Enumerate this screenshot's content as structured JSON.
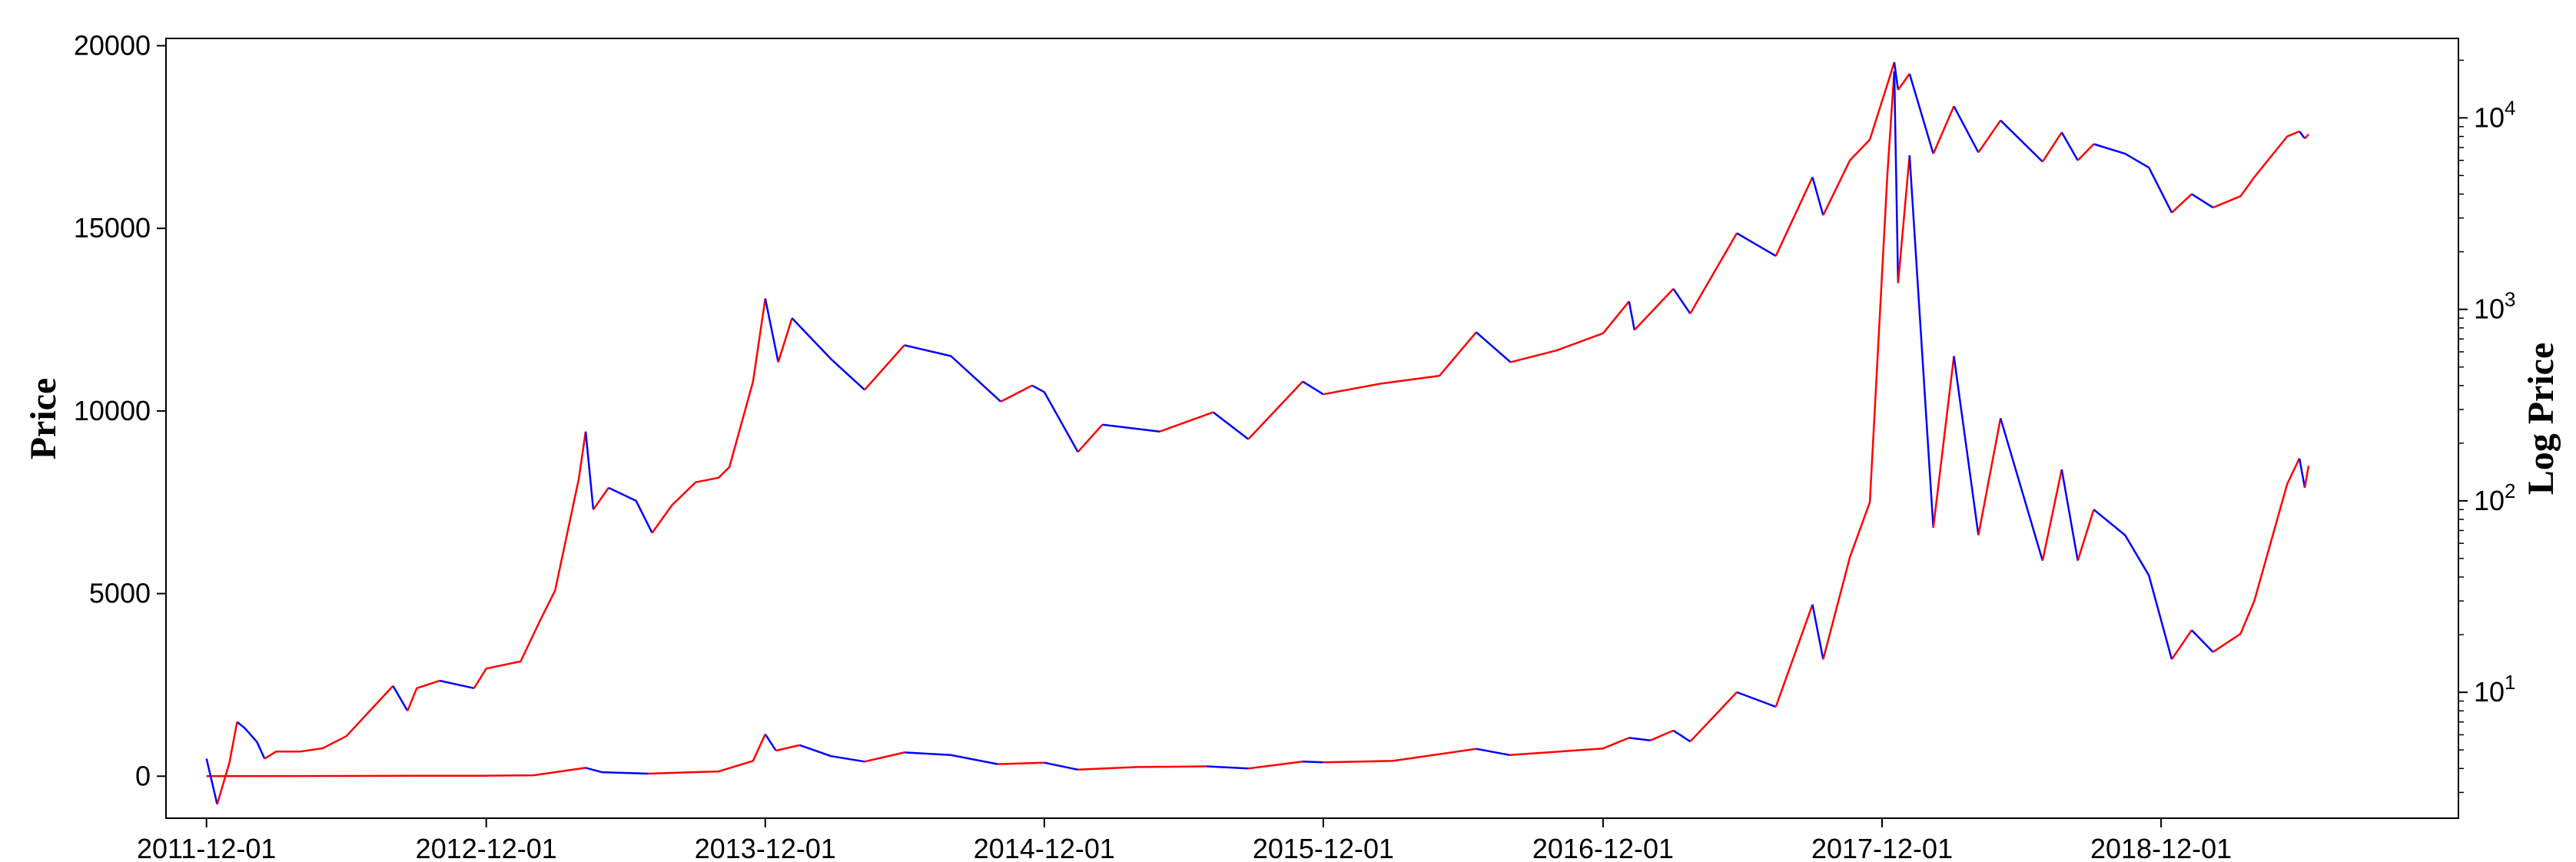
{
  "chart_data": {
    "type": "line",
    "title": "",
    "xlabel": "",
    "ylabel": "Price",
    "y2label": "Log Price",
    "x_ticks": [
      "2011-12-01",
      "2012-12-01",
      "2013-12-01",
      "2014-12-01",
      "2015-12-01",
      "2016-12-01",
      "2017-12-01",
      "2018-12-01"
    ],
    "xlim": [
      "2011-10-09",
      "2019-12-25"
    ],
    "ylim": [
      -1150,
      20200
    ],
    "y_ticks": [
      0,
      5000,
      10000,
      15000,
      20000
    ],
    "y2_scale": "log",
    "y2lim": [
      2.2,
      26000
    ],
    "y2_ticks": [
      {
        "value": 10,
        "base": "10",
        "exp": "1"
      },
      {
        "value": 100,
        "base": "10",
        "exp": "2"
      },
      {
        "value": 1000,
        "base": "10",
        "exp": "3"
      },
      {
        "value": 10000,
        "base": "10",
        "exp": "4"
      }
    ],
    "colors": {
      "rising": "#ff0000",
      "falling": "#0000ff"
    },
    "grid": false,
    "series": [
      {
        "axis": "left",
        "points": [
          [
            "2011-12-01",
            3
          ],
          [
            "2012-03-01",
            5
          ],
          [
            "2012-06-01",
            6
          ],
          [
            "2012-09-01",
            11
          ],
          [
            "2012-12-01",
            13
          ],
          [
            "2013-02-01",
            25
          ],
          [
            "2013-04-10",
            230
          ],
          [
            "2013-05-01",
            110
          ],
          [
            "2013-07-01",
            70
          ],
          [
            "2013-10-01",
            130
          ],
          [
            "2013-11-15",
            420
          ],
          [
            "2013-12-01",
            1150
          ],
          [
            "2013-12-15",
            700
          ],
          [
            "2014-01-15",
            850
          ],
          [
            "2014-02-25",
            550
          ],
          [
            "2014-04-10",
            400
          ],
          [
            "2014-06-01",
            650
          ],
          [
            "2014-08-01",
            580
          ],
          [
            "2014-10-01",
            330
          ],
          [
            "2014-12-01",
            370
          ],
          [
            "2015-01-14",
            180
          ],
          [
            "2015-04-01",
            250
          ],
          [
            "2015-07-01",
            270
          ],
          [
            "2015-08-25",
            210
          ],
          [
            "2015-11-04",
            400
          ],
          [
            "2015-12-01",
            380
          ],
          [
            "2016-03-01",
            420
          ],
          [
            "2016-06-18",
            750
          ],
          [
            "2016-08-01",
            580
          ],
          [
            "2016-12-01",
            760
          ],
          [
            "2017-01-04",
            1050
          ],
          [
            "2017-02-01",
            980
          ],
          [
            "2017-03-03",
            1250
          ],
          [
            "2017-03-25",
            950
          ],
          [
            "2017-05-25",
            2300
          ],
          [
            "2017-07-15",
            1900
          ],
          [
            "2017-09-01",
            4700
          ],
          [
            "2017-09-15",
            3200
          ],
          [
            "2017-10-20",
            6000
          ],
          [
            "2017-11-15",
            7500
          ],
          [
            "2017-12-08",
            16500
          ],
          [
            "2017-12-17",
            19300
          ],
          [
            "2017-12-22",
            13500
          ],
          [
            "2018-01-06",
            17000
          ],
          [
            "2018-02-06",
            6800
          ],
          [
            "2018-03-05",
            11500
          ],
          [
            "2018-04-06",
            6600
          ],
          [
            "2018-05-05",
            9800
          ],
          [
            "2018-06-29",
            5900
          ],
          [
            "2018-07-24",
            8400
          ],
          [
            "2018-08-14",
            5900
          ],
          [
            "2018-09-04",
            7300
          ],
          [
            "2018-10-15",
            6600
          ],
          [
            "2018-11-15",
            5500
          ],
          [
            "2018-12-15",
            3200
          ],
          [
            "2019-01-10",
            4000
          ],
          [
            "2019-02-07",
            3400
          ],
          [
            "2019-03-15",
            3900
          ],
          [
            "2019-04-02",
            4800
          ],
          [
            "2019-05-15",
            8000
          ],
          [
            "2019-05-31",
            8700
          ],
          [
            "2019-06-07",
            7900
          ],
          [
            "2019-06-12",
            8500
          ]
        ]
      },
      {
        "axis": "right",
        "points": [
          [
            "2011-12-01",
            4.5
          ],
          [
            "2011-12-15",
            2.6
          ],
          [
            "2011-12-31",
            4.3
          ],
          [
            "2012-01-10",
            7.0
          ],
          [
            "2012-01-20",
            6.5
          ],
          [
            "2012-02-05",
            5.5
          ],
          [
            "2012-02-15",
            4.5
          ],
          [
            "2012-03-01",
            4.9
          ],
          [
            "2012-04-01",
            4.9
          ],
          [
            "2012-05-01",
            5.1
          ],
          [
            "2012-06-01",
            5.9
          ],
          [
            "2012-08-01",
            10.8
          ],
          [
            "2012-08-20",
            8.0
          ],
          [
            "2012-09-01",
            10.5
          ],
          [
            "2012-10-01",
            11.5
          ],
          [
            "2012-11-15",
            10.5
          ],
          [
            "2012-12-01",
            13.3
          ],
          [
            "2013-01-15",
            14.5
          ],
          [
            "2013-02-10",
            24
          ],
          [
            "2013-03-01",
            34
          ],
          [
            "2013-04-01",
            130
          ],
          [
            "2013-04-10",
            230
          ],
          [
            "2013-04-20",
            90
          ],
          [
            "2013-05-10",
            117
          ],
          [
            "2013-06-15",
            100
          ],
          [
            "2013-07-06",
            68
          ],
          [
            "2013-08-01",
            95
          ],
          [
            "2013-09-01",
            125
          ],
          [
            "2013-10-01",
            132
          ],
          [
            "2013-10-15",
            150
          ],
          [
            "2013-11-15",
            420
          ],
          [
            "2013-12-01",
            1140
          ],
          [
            "2013-12-18",
            530
          ],
          [
            "2014-01-05",
            900
          ],
          [
            "2014-02-25",
            550
          ],
          [
            "2014-04-10",
            380
          ],
          [
            "2014-06-01",
            650
          ],
          [
            "2014-08-01",
            570
          ],
          [
            "2014-10-05",
            330
          ],
          [
            "2014-11-15",
            400
          ],
          [
            "2014-12-01",
            370
          ],
          [
            "2015-01-14",
            180
          ],
          [
            "2015-02-15",
            250
          ],
          [
            "2015-05-01",
            230
          ],
          [
            "2015-07-10",
            290
          ],
          [
            "2015-08-25",
            210
          ],
          [
            "2015-11-04",
            420
          ],
          [
            "2015-12-01",
            360
          ],
          [
            "2016-02-15",
            410
          ],
          [
            "2016-05-01",
            450
          ],
          [
            "2016-06-18",
            760
          ],
          [
            "2016-08-02",
            530
          ],
          [
            "2016-10-01",
            610
          ],
          [
            "2016-12-01",
            750
          ],
          [
            "2017-01-04",
            1100
          ],
          [
            "2017-01-11",
            780
          ],
          [
            "2017-03-03",
            1280
          ],
          [
            "2017-03-25",
            950
          ],
          [
            "2017-05-25",
            2500
          ],
          [
            "2017-07-15",
            1900
          ],
          [
            "2017-09-01",
            4900
          ],
          [
            "2017-09-15",
            3100
          ],
          [
            "2017-10-20",
            6000
          ],
          [
            "2017-11-15",
            7700
          ],
          [
            "2017-12-08",
            15000
          ],
          [
            "2017-12-17",
            19500
          ],
          [
            "2017-12-22",
            14000
          ],
          [
            "2018-01-06",
            17000
          ],
          [
            "2018-02-06",
            6500
          ],
          [
            "2018-03-05",
            11500
          ],
          [
            "2018-04-06",
            6600
          ],
          [
            "2018-05-05",
            9700
          ],
          [
            "2018-06-29",
            5900
          ],
          [
            "2018-07-24",
            8400
          ],
          [
            "2018-08-14",
            6000
          ],
          [
            "2018-09-04",
            7300
          ],
          [
            "2018-10-15",
            6500
          ],
          [
            "2018-11-15",
            5500
          ],
          [
            "2018-12-15",
            3200
          ],
          [
            "2019-01-10",
            4000
          ],
          [
            "2019-02-07",
            3400
          ],
          [
            "2019-03-15",
            3900
          ],
          [
            "2019-04-02",
            4900
          ],
          [
            "2019-05-15",
            8000
          ],
          [
            "2019-05-31",
            8500
          ],
          [
            "2019-06-07",
            7800
          ],
          [
            "2019-06-12",
            8200
          ]
        ]
      }
    ]
  }
}
